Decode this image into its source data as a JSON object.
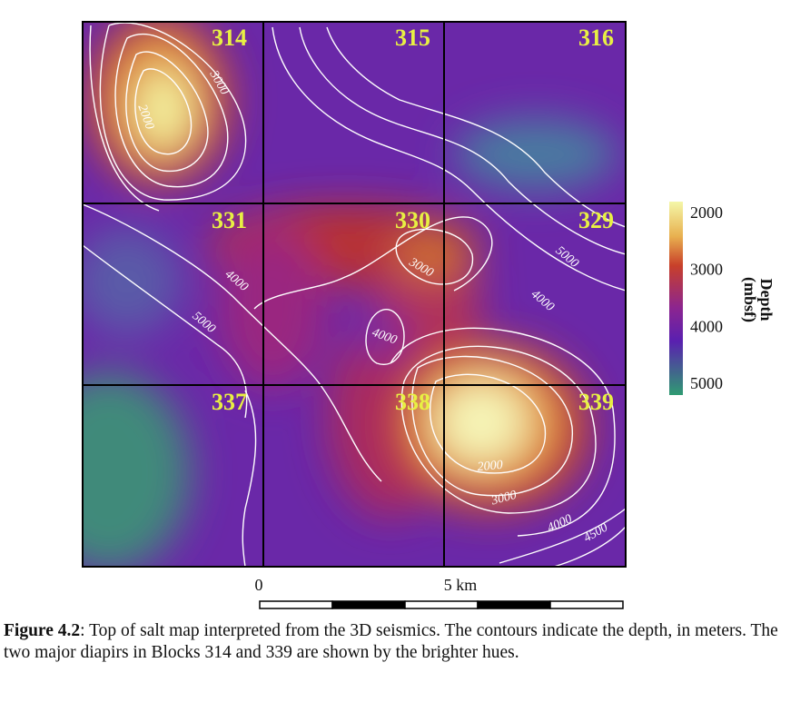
{
  "chart_data": {
    "type": "heatmap",
    "title": "",
    "colorbar": {
      "title": "Depth",
      "unit": "(mbsf)",
      "ticks": [
        2000,
        3000,
        4000,
        5000
      ],
      "colors": [
        "#f4f7a8",
        "#e8c45a",
        "#c8402a",
        "#a2207a",
        "#5a20b0",
        "#3d8a78"
      ]
    },
    "blocks": [
      {
        "id": "314",
        "row": 0,
        "col": 0
      },
      {
        "id": "315",
        "row": 0,
        "col": 1
      },
      {
        "id": "316",
        "row": 0,
        "col": 2
      },
      {
        "id": "331",
        "row": 1,
        "col": 0
      },
      {
        "id": "330",
        "row": 1,
        "col": 1
      },
      {
        "id": "329",
        "row": 1,
        "col": 2
      },
      {
        "id": "337",
        "row": 2,
        "col": 0
      },
      {
        "id": "338",
        "row": 2,
        "col": 1
      },
      {
        "id": "339",
        "row": 2,
        "col": 2
      }
    ],
    "contour_labels": [
      "2000",
      "3000",
      "3000",
      "4000",
      "5000",
      "4000",
      "5000",
      "4000",
      "2000",
      "3000",
      "4000",
      "4500"
    ],
    "scale_bar": {
      "labels": [
        "0",
        "5 km"
      ],
      "segments": 5
    }
  },
  "caption": {
    "label": "Figure 4.2",
    "text": ": Top of salt map interpreted from the 3D seismics. The contours indicate the depth, in meters. The two major diapirs in Blocks 314 and 339 are shown by the brighter hues."
  }
}
